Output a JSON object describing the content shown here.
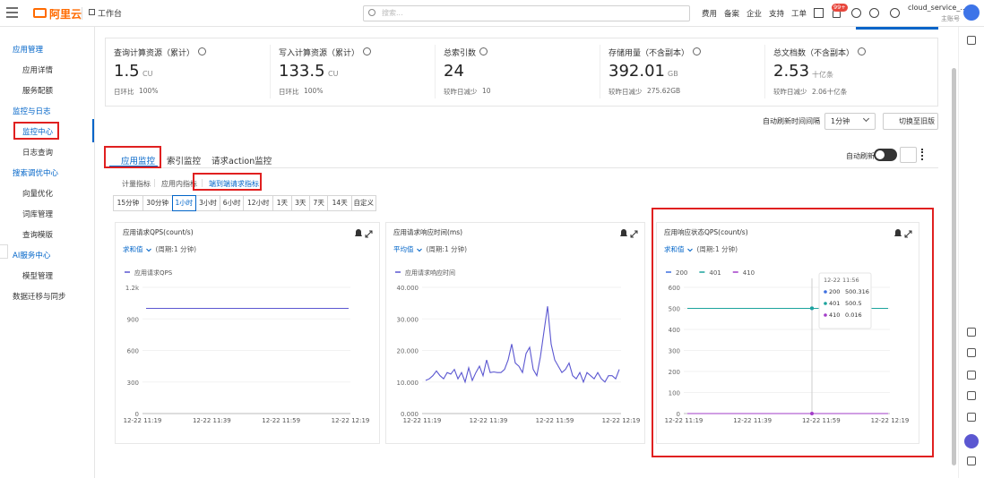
{
  "topbar": {
    "brand": "阿里云",
    "workbench": "工作台",
    "search_placeholder": "搜索...",
    "nav": [
      "费用",
      "备案",
      "企业",
      "支持",
      "工单"
    ],
    "badge": "99+",
    "account": "cloud_service_...",
    "account_type": "主账号"
  },
  "sidebar": {
    "sections": [
      {
        "title": "应用管理",
        "items": [
          "应用详情",
          "服务配额"
        ]
      },
      {
        "title": "监控与日志",
        "items": [
          "监控中心",
          "日志查询"
        ]
      },
      {
        "title": "搜索调优中心",
        "items": [
          "向量优化",
          "词库管理",
          "查询模版"
        ]
      },
      {
        "title": "AI服务中心",
        "items": [
          "模型管理"
        ]
      },
      {
        "title": "数据迁移与同步",
        "items": []
      }
    ]
  },
  "stats": [
    {
      "label": "查询计算资源（累计）",
      "value": 1.5,
      "unit": "CU",
      "compare_label": "日环比",
      "compare_value": "100%"
    },
    {
      "label": "写入计算资源（累计）",
      "value": 133.5,
      "unit": "CU",
      "compare_label": "日环比",
      "compare_value": "100%"
    },
    {
      "label": "总索引数",
      "value": 24,
      "compare_label": "较昨日减少",
      "compare_value": 10
    },
    {
      "label": "存储用量（不含副本）",
      "value": 392.01,
      "unit": "GB",
      "compare_label": "较昨日减少",
      "compare_value": "275.62GB"
    },
    {
      "label": "总文档数（不含副本）",
      "value": 2.53,
      "unit": "十亿条",
      "compare_label": "较昨日减少",
      "compare_value": "2.06十亿条"
    }
  ],
  "toolbar": {
    "refresh_interval_label": "自动刷新时间间隔",
    "refresh_interval": "1分钟",
    "switch_button": "切换至旧版",
    "auto_refresh": "自动刷新"
  },
  "tabs": {
    "items": [
      "应用监控",
      "索引监控",
      "请求action监控"
    ],
    "active": 0
  },
  "subtabs": {
    "items": [
      "计量指标",
      "应用内指标",
      "端到端请求指标"
    ],
    "active": 2
  },
  "time_ranges": {
    "items": [
      "15分钟",
      "30分钟",
      "1小时",
      "3小时",
      "6小时",
      "12小时",
      "1天",
      "3天",
      "7天",
      "14天",
      "自定义"
    ],
    "active": 2
  },
  "charts": [
    {
      "type": "line",
      "title": "应用请求QPS(count/s)",
      "aggregation": "求和值",
      "period": "(周期:1 分钟)",
      "x_labels": [
        "12-22 11:19",
        "12-22 11:39",
        "12-22 11:59",
        "12-22 12:19"
      ],
      "ylim": [
        0,
        1200
      ],
      "yticks": [
        0,
        300,
        600,
        900,
        {
          "value": 1200,
          "label": "1.2k"
        }
      ],
      "series": [
        {
          "name": "应用请求QPS",
          "color": "#5b57d1",
          "values": [
            1000,
            1000,
            1000,
            1000,
            1000,
            1000,
            1000,
            1000,
            1000,
            1000,
            1000,
            1000
          ]
        }
      ]
    },
    {
      "type": "line",
      "title": "应用请求响应时间(ms)",
      "aggregation": "平均值",
      "period": "(周期:1 分钟)",
      "x_labels": [
        "12-22 11:19",
        "12-22 11:39",
        "12-22 11:59",
        "12-22 12:19"
      ],
      "ylim": [
        0,
        40
      ],
      "yticks": [
        {
          "value": 0,
          "label": "0.000"
        },
        {
          "value": 10,
          "label": "10.000"
        },
        {
          "value": 20,
          "label": "20.000"
        },
        {
          "value": 30,
          "label": "30.000"
        },
        {
          "value": 40,
          "label": "40.000"
        }
      ],
      "series": [
        {
          "name": "应用请求响应时间",
          "color": "#5b57d1",
          "values": [
            10.5,
            11,
            12,
            13.5,
            12,
            11,
            13,
            12.5,
            14,
            11,
            13,
            10,
            14.5,
            10.5,
            13,
            15,
            12,
            17,
            13,
            13.2,
            13,
            13,
            14,
            17,
            22,
            16,
            15,
            13,
            19,
            21,
            14,
            12,
            18,
            26,
            34,
            22,
            17,
            15,
            13,
            14,
            16,
            12,
            11,
            13,
            10,
            13,
            12,
            11,
            13,
            11,
            10,
            12,
            12,
            11,
            14
          ]
        }
      ]
    },
    {
      "type": "line",
      "title": "应用响应状态QPS(count/s)",
      "aggregation": "求和值",
      "period": "(周期:1 分钟)",
      "x_labels": [
        "12-22 11:19",
        "12-22 11:39",
        "12-22 11:59",
        "12-22 12:19"
      ],
      "ylim": [
        0,
        600
      ],
      "yticks": [
        0,
        100,
        200,
        300,
        400,
        500,
        600
      ],
      "series": [
        {
          "name": "200",
          "color": "#3d6fe0",
          "values": [
            500,
            500,
            500,
            500,
            500,
            500,
            500,
            500,
            500,
            500,
            500,
            500
          ]
        },
        {
          "name": "401",
          "color": "#1ba39c",
          "values": [
            500,
            500,
            500,
            500,
            500,
            500,
            500,
            500,
            500,
            500,
            500,
            500
          ]
        },
        {
          "name": "410",
          "color": "#a23cc8",
          "values": [
            0,
            0,
            0,
            0,
            0,
            0,
            0,
            0,
            0,
            0,
            0,
            0
          ]
        }
      ],
      "tooltip": {
        "time": "12-22 11:56",
        "rows": [
          {
            "name": "200",
            "value": 500.316
          },
          {
            "name": "401",
            "value": 500.5
          },
          {
            "name": "410",
            "value": 0.016
          }
        ]
      }
    }
  ]
}
